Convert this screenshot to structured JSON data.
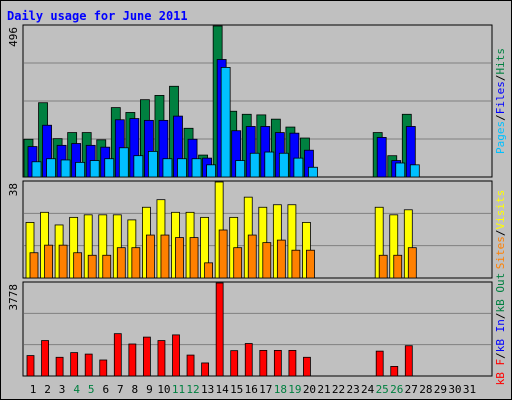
{
  "title": "Daily usage for June 2011",
  "chart_data": [
    {
      "type": "bar",
      "panel": "pages-files-hits",
      "ymax_label": "496",
      "ylim": [
        0,
        496
      ],
      "grid": true,
      "x": [
        1,
        2,
        3,
        4,
        5,
        6,
        7,
        8,
        9,
        10,
        11,
        12,
        13,
        14,
        15,
        16,
        17,
        18,
        19,
        20,
        21,
        22,
        23,
        24,
        25,
        26,
        27,
        28,
        29,
        30,
        31
      ],
      "series": [
        {
          "name": "Hits",
          "color": "#008040",
          "values": [
            124,
            244,
            126,
            146,
            146,
            122,
            228,
            212,
            254,
            268,
            298,
            160,
            72,
            496,
            216,
            206,
            204,
            190,
            164,
            128,
            0,
            0,
            0,
            0,
            146,
            70,
            206,
            0,
            0,
            0,
            0
          ]
        },
        {
          "name": "Files",
          "color": "#0000ff",
          "values": [
            100,
            170,
            104,
            110,
            104,
            98,
            188,
            192,
            186,
            186,
            200,
            124,
            62,
            386,
            152,
            166,
            166,
            146,
            144,
            88,
            0,
            0,
            0,
            0,
            130,
            54,
            166,
            0,
            0,
            0,
            0
          ]
        },
        {
          "name": "Pages",
          "color": "#00c0ff",
          "values": [
            50,
            60,
            56,
            48,
            54,
            60,
            96,
            70,
            84,
            60,
            60,
            60,
            40,
            360,
            54,
            78,
            82,
            78,
            62,
            32,
            0,
            0,
            0,
            0,
            0,
            46,
            40,
            0,
            0,
            0,
            0
          ]
        }
      ]
    },
    {
      "type": "bar",
      "panel": "visits-sites",
      "ymax_label": "38",
      "ylim": [
        0,
        38
      ],
      "grid": true,
      "x": [
        1,
        2,
        3,
        4,
        5,
        6,
        7,
        8,
        9,
        10,
        11,
        12,
        13,
        14,
        15,
        16,
        17,
        18,
        19,
        20,
        21,
        22,
        23,
        24,
        25,
        26,
        27,
        28,
        29,
        30,
        31
      ],
      "series": [
        {
          "name": "Visits",
          "color": "#ffff00",
          "values": [
            22,
            26,
            21,
            24,
            25,
            25,
            25,
            23,
            28,
            31,
            26,
            26,
            24,
            38,
            24,
            32,
            28,
            29,
            29,
            22,
            0,
            0,
            0,
            0,
            28,
            25,
            27,
            0,
            0,
            0,
            0
          ]
        },
        {
          "name": "Sites",
          "color": "#ff8000",
          "values": [
            10,
            13,
            13,
            10,
            9,
            9,
            12,
            12,
            17,
            17,
            16,
            16,
            6,
            19,
            12,
            17,
            14,
            15,
            11,
            11,
            0,
            0,
            0,
            0,
            9,
            9,
            12,
            0,
            0,
            0,
            0
          ]
        }
      ]
    },
    {
      "type": "bar",
      "panel": "kbf",
      "ymax_label": "3778",
      "ylim": [
        0,
        3778
      ],
      "grid": true,
      "x": [
        1,
        2,
        3,
        4,
        5,
        6,
        7,
        8,
        9,
        10,
        11,
        12,
        13,
        14,
        15,
        16,
        17,
        18,
        19,
        20,
        21,
        22,
        23,
        24,
        25,
        26,
        27,
        28,
        29,
        30,
        31
      ],
      "series": [
        {
          "name": "kB F",
          "color": "#ff0000",
          "values": [
            830,
            1440,
            760,
            950,
            890,
            650,
            1720,
            1300,
            1580,
            1440,
            1670,
            850,
            530,
            3778,
            1030,
            1320,
            1040,
            1040,
            1040,
            760,
            0,
            0,
            0,
            0,
            1010,
            390,
            1230,
            0,
            0,
            0,
            0
          ]
        }
      ]
    }
  ],
  "x_labels": [
    {
      "text": "1",
      "color": "#000000"
    },
    {
      "text": "2",
      "color": "#000000"
    },
    {
      "text": "3",
      "color": "#000000"
    },
    {
      "text": "4",
      "color": "#008040"
    },
    {
      "text": "5",
      "color": "#008040"
    },
    {
      "text": "6",
      "color": "#000000"
    },
    {
      "text": "7",
      "color": "#000000"
    },
    {
      "text": "8",
      "color": "#000000"
    },
    {
      "text": "9",
      "color": "#000000"
    },
    {
      "text": "10",
      "color": "#000000"
    },
    {
      "text": "11",
      "color": "#008040"
    },
    {
      "text": "12",
      "color": "#008040"
    },
    {
      "text": "13",
      "color": "#000000"
    },
    {
      "text": "14",
      "color": "#000000"
    },
    {
      "text": "15",
      "color": "#000000"
    },
    {
      "text": "16",
      "color": "#000000"
    },
    {
      "text": "17",
      "color": "#000000"
    },
    {
      "text": "18",
      "color": "#008040"
    },
    {
      "text": "19",
      "color": "#008040"
    },
    {
      "text": "20",
      "color": "#000000"
    },
    {
      "text": "21",
      "color": "#000000"
    },
    {
      "text": "22",
      "color": "#000000"
    },
    {
      "text": "23",
      "color": "#000000"
    },
    {
      "text": "24",
      "color": "#000000"
    },
    {
      "text": "25",
      "color": "#008040"
    },
    {
      "text": "26",
      "color": "#008040"
    },
    {
      "text": "27",
      "color": "#000000"
    },
    {
      "text": "28",
      "color": "#000000"
    },
    {
      "text": "29",
      "color": "#000000"
    },
    {
      "text": "30",
      "color": "#000000"
    },
    {
      "text": "31",
      "color": "#000000"
    }
  ],
  "legends": {
    "panel1": [
      {
        "text": "Pages",
        "color": "#00c0ff"
      },
      {
        "text": "/",
        "color": "#000000"
      },
      {
        "text": "Files",
        "color": "#0000ff"
      },
      {
        "text": "/",
        "color": "#000000"
      },
      {
        "text": "Hits",
        "color": "#008040"
      }
    ],
    "panel2": [
      {
        "text": "Sites",
        "color": "#ff8000"
      },
      {
        "text": "/",
        "color": "#000000"
      },
      {
        "text": "Visits",
        "color": "#ffff00"
      }
    ],
    "panel3": [
      {
        "text": "kB F",
        "color": "#ff0000"
      },
      {
        "text": "/",
        "color": "#000000"
      },
      {
        "text": "kB In",
        "color": "#0000ff"
      },
      {
        "text": "/",
        "color": "#000000"
      },
      {
        "text": "kB Out",
        "color": "#008040"
      }
    ]
  }
}
